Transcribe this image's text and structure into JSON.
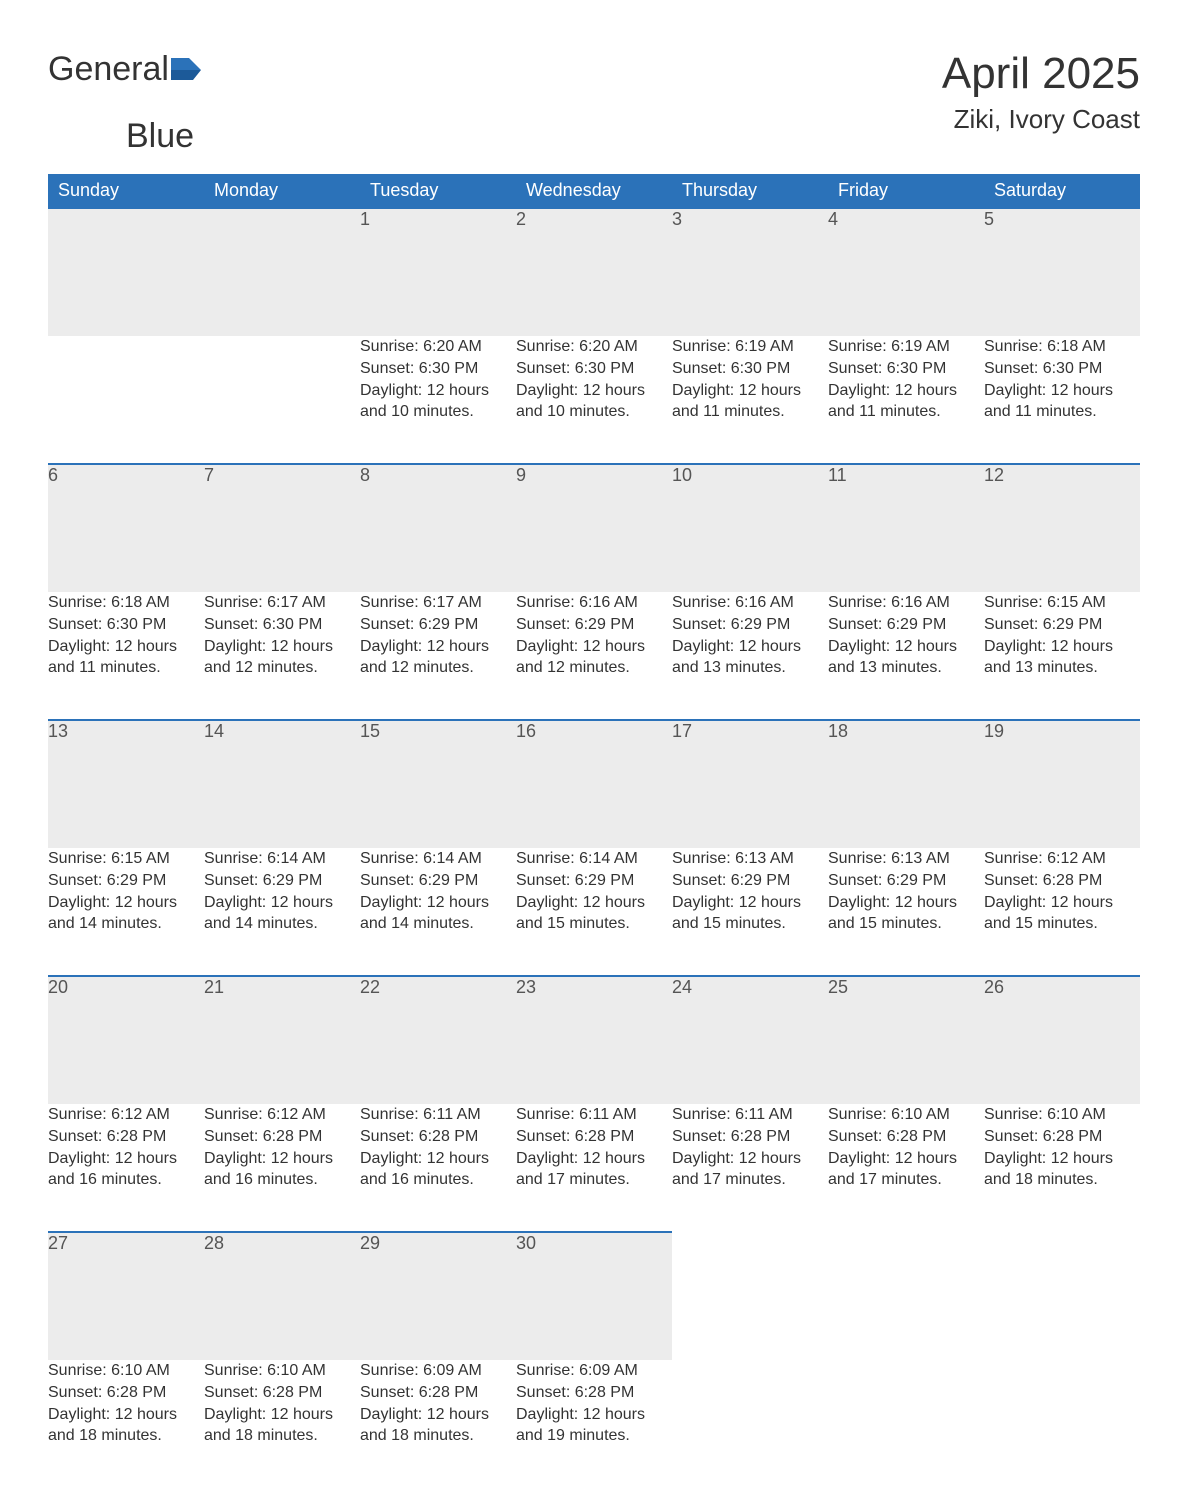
{
  "brand": {
    "part1": "General",
    "part2": "Blue"
  },
  "title": "April 2025",
  "location": "Ziki, Ivory Coast",
  "colors": {
    "accent": "#2b72b9",
    "header_bg": "#2b72b9",
    "header_text": "#ffffff",
    "daynum_bg": "#ececec",
    "text": "#333333",
    "background": "#ffffff"
  },
  "calendar": {
    "type": "table",
    "columns": [
      "Sunday",
      "Monday",
      "Tuesday",
      "Wednesday",
      "Thursday",
      "Friday",
      "Saturday"
    ],
    "weeks": [
      [
        null,
        null,
        {
          "d": "1",
          "sr": "Sunrise: 6:20 AM",
          "ss": "Sunset: 6:30 PM",
          "dl1": "Daylight: 12 hours",
          "dl2": "and 10 minutes."
        },
        {
          "d": "2",
          "sr": "Sunrise: 6:20 AM",
          "ss": "Sunset: 6:30 PM",
          "dl1": "Daylight: 12 hours",
          "dl2": "and 10 minutes."
        },
        {
          "d": "3",
          "sr": "Sunrise: 6:19 AM",
          "ss": "Sunset: 6:30 PM",
          "dl1": "Daylight: 12 hours",
          "dl2": "and 11 minutes."
        },
        {
          "d": "4",
          "sr": "Sunrise: 6:19 AM",
          "ss": "Sunset: 6:30 PM",
          "dl1": "Daylight: 12 hours",
          "dl2": "and 11 minutes."
        },
        {
          "d": "5",
          "sr": "Sunrise: 6:18 AM",
          "ss": "Sunset: 6:30 PM",
          "dl1": "Daylight: 12 hours",
          "dl2": "and 11 minutes."
        }
      ],
      [
        {
          "d": "6",
          "sr": "Sunrise: 6:18 AM",
          "ss": "Sunset: 6:30 PM",
          "dl1": "Daylight: 12 hours",
          "dl2": "and 11 minutes."
        },
        {
          "d": "7",
          "sr": "Sunrise: 6:17 AM",
          "ss": "Sunset: 6:30 PM",
          "dl1": "Daylight: 12 hours",
          "dl2": "and 12 minutes."
        },
        {
          "d": "8",
          "sr": "Sunrise: 6:17 AM",
          "ss": "Sunset: 6:29 PM",
          "dl1": "Daylight: 12 hours",
          "dl2": "and 12 minutes."
        },
        {
          "d": "9",
          "sr": "Sunrise: 6:16 AM",
          "ss": "Sunset: 6:29 PM",
          "dl1": "Daylight: 12 hours",
          "dl2": "and 12 minutes."
        },
        {
          "d": "10",
          "sr": "Sunrise: 6:16 AM",
          "ss": "Sunset: 6:29 PM",
          "dl1": "Daylight: 12 hours",
          "dl2": "and 13 minutes."
        },
        {
          "d": "11",
          "sr": "Sunrise: 6:16 AM",
          "ss": "Sunset: 6:29 PM",
          "dl1": "Daylight: 12 hours",
          "dl2": "and 13 minutes."
        },
        {
          "d": "12",
          "sr": "Sunrise: 6:15 AM",
          "ss": "Sunset: 6:29 PM",
          "dl1": "Daylight: 12 hours",
          "dl2": "and 13 minutes."
        }
      ],
      [
        {
          "d": "13",
          "sr": "Sunrise: 6:15 AM",
          "ss": "Sunset: 6:29 PM",
          "dl1": "Daylight: 12 hours",
          "dl2": "and 14 minutes."
        },
        {
          "d": "14",
          "sr": "Sunrise: 6:14 AM",
          "ss": "Sunset: 6:29 PM",
          "dl1": "Daylight: 12 hours",
          "dl2": "and 14 minutes."
        },
        {
          "d": "15",
          "sr": "Sunrise: 6:14 AM",
          "ss": "Sunset: 6:29 PM",
          "dl1": "Daylight: 12 hours",
          "dl2": "and 14 minutes."
        },
        {
          "d": "16",
          "sr": "Sunrise: 6:14 AM",
          "ss": "Sunset: 6:29 PM",
          "dl1": "Daylight: 12 hours",
          "dl2": "and 15 minutes."
        },
        {
          "d": "17",
          "sr": "Sunrise: 6:13 AM",
          "ss": "Sunset: 6:29 PM",
          "dl1": "Daylight: 12 hours",
          "dl2": "and 15 minutes."
        },
        {
          "d": "18",
          "sr": "Sunrise: 6:13 AM",
          "ss": "Sunset: 6:29 PM",
          "dl1": "Daylight: 12 hours",
          "dl2": "and 15 minutes."
        },
        {
          "d": "19",
          "sr": "Sunrise: 6:12 AM",
          "ss": "Sunset: 6:28 PM",
          "dl1": "Daylight: 12 hours",
          "dl2": "and 15 minutes."
        }
      ],
      [
        {
          "d": "20",
          "sr": "Sunrise: 6:12 AM",
          "ss": "Sunset: 6:28 PM",
          "dl1": "Daylight: 12 hours",
          "dl2": "and 16 minutes."
        },
        {
          "d": "21",
          "sr": "Sunrise: 6:12 AM",
          "ss": "Sunset: 6:28 PM",
          "dl1": "Daylight: 12 hours",
          "dl2": "and 16 minutes."
        },
        {
          "d": "22",
          "sr": "Sunrise: 6:11 AM",
          "ss": "Sunset: 6:28 PM",
          "dl1": "Daylight: 12 hours",
          "dl2": "and 16 minutes."
        },
        {
          "d": "23",
          "sr": "Sunrise: 6:11 AM",
          "ss": "Sunset: 6:28 PM",
          "dl1": "Daylight: 12 hours",
          "dl2": "and 17 minutes."
        },
        {
          "d": "24",
          "sr": "Sunrise: 6:11 AM",
          "ss": "Sunset: 6:28 PM",
          "dl1": "Daylight: 12 hours",
          "dl2": "and 17 minutes."
        },
        {
          "d": "25",
          "sr": "Sunrise: 6:10 AM",
          "ss": "Sunset: 6:28 PM",
          "dl1": "Daylight: 12 hours",
          "dl2": "and 17 minutes."
        },
        {
          "d": "26",
          "sr": "Sunrise: 6:10 AM",
          "ss": "Sunset: 6:28 PM",
          "dl1": "Daylight: 12 hours",
          "dl2": "and 18 minutes."
        }
      ],
      [
        {
          "d": "27",
          "sr": "Sunrise: 6:10 AM",
          "ss": "Sunset: 6:28 PM",
          "dl1": "Daylight: 12 hours",
          "dl2": "and 18 minutes."
        },
        {
          "d": "28",
          "sr": "Sunrise: 6:10 AM",
          "ss": "Sunset: 6:28 PM",
          "dl1": "Daylight: 12 hours",
          "dl2": "and 18 minutes."
        },
        {
          "d": "29",
          "sr": "Sunrise: 6:09 AM",
          "ss": "Sunset: 6:28 PM",
          "dl1": "Daylight: 12 hours",
          "dl2": "and 18 minutes."
        },
        {
          "d": "30",
          "sr": "Sunrise: 6:09 AM",
          "ss": "Sunset: 6:28 PM",
          "dl1": "Daylight: 12 hours",
          "dl2": "and 19 minutes."
        },
        null,
        null,
        null
      ]
    ]
  }
}
